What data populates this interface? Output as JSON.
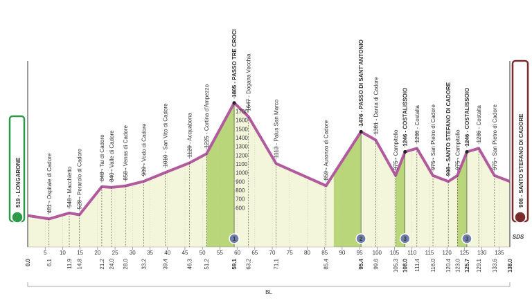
{
  "chart_data": {
    "type": "area",
    "start_label": "519 - LONGARONE",
    "finish_label": "908 - SANTO STEFANO DI CADORE",
    "x": [
      0,
      6.1,
      11.9,
      14.8,
      21.2,
      24.0,
      28.0,
      33.2,
      39.4,
      46.3,
      51.2,
      59.1,
      63.2,
      71.1,
      85.4,
      95.4,
      99.6,
      105.3,
      108.0,
      111.4,
      116.0,
      120.4,
      123.0,
      125.7,
      129.1,
      133.6,
      138.0
    ],
    "x_labels": [
      "0.0",
      "6.1",
      "11.9",
      "14.8",
      "21.2",
      "24.0",
      "28.0",
      "33.2",
      "39.4",
      "46.3",
      "51.2",
      "59.1",
      "63.2",
      "71.1",
      "85.4",
      "95.4",
      "99.6",
      "105.3",
      "108.0",
      "111.4",
      "116.0",
      "120.4",
      "123.0",
      "125.7",
      "129.1",
      "133.6",
      "138.0"
    ],
    "values": [
      519,
      481,
      548,
      528,
      848,
      840,
      858,
      909,
      1010,
      1120,
      1225,
      1805,
      1647,
      1113,
      859,
      1476,
      1381,
      975,
      1246,
      1286,
      975,
      908,
      975,
      1246,
      1286,
      975,
      908
    ],
    "point_labels": [
      null,
      "481 - Ospitale di Cadore",
      "548 - Macchietto",
      "528 - Perarolo di Cadore",
      "848 - Tai di Cadore",
      "840 - Valle di Cadore",
      "858 - Venas di Cadore",
      "909 - Vodo di Cadore",
      "1010 - San Vito di Cadore",
      "1120 - Acquabona",
      "1225 - Cortina d'Ampezzo",
      "1805 - PASSO TRE CROCI",
      "1647 - Dogana Vecchia",
      "1113 - Palus San Marco",
      "859 - Auronzo di Cadore",
      "1476 - PASSO DI SANT'ANTONIO",
      "1381 - Danta di Cadore",
      "975 - Campitello",
      "1246 - COSTALISSOIO",
      "1286 - Costalta",
      "975 - San Pietro di Cadore",
      "908 - SANTO STEFANO DI CADORE",
      "975 - Campitello",
      "1246 - COSTALISSOIO",
      "1286 - Costalta",
      "975 - San Pietro di Cadore",
      null
    ],
    "color": "#b15a9e",
    "fill": "#f4f6dc",
    "climb_color": "#b9d77a",
    "climbs": [
      {
        "number": "1",
        "from": 51.2,
        "to": 59.1
      },
      {
        "number": "2",
        "from": 87.6,
        "to": 95.4
      },
      {
        "number": "3",
        "from": 105.3,
        "to": 108.0
      },
      {
        "number": "3",
        "from": 123.0,
        "to": 125.7
      }
    ],
    "xlim": [
      0,
      138
    ],
    "xticks": [
      5,
      10,
      15,
      20,
      25,
      30,
      35,
      40,
      45,
      50,
      55,
      60,
      65,
      70,
      75,
      80,
      85,
      90,
      95,
      100,
      105,
      110,
      115,
      120,
      125,
      130,
      135
    ],
    "ylim": [
      200,
      2000
    ],
    "yticks": [
      600,
      700,
      800,
      900,
      1000,
      1100,
      1200,
      1300,
      1400,
      1500,
      1600,
      1700
    ],
    "sector_label": "BL",
    "logo": "SDS"
  }
}
